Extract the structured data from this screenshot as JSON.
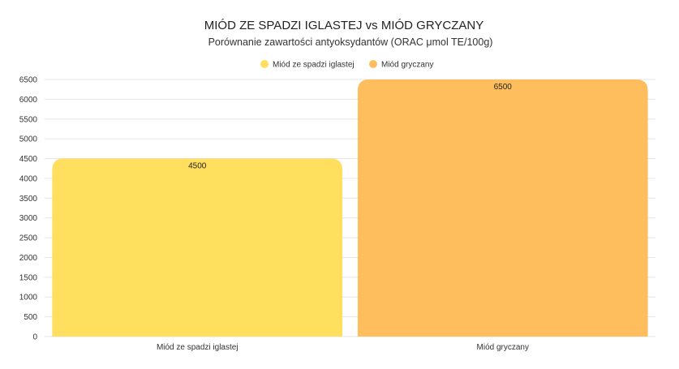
{
  "chart_data": {
    "type": "bar",
    "title": "MIÓD ZE SPADZI IGLASTEJ vs MIÓD GRYCZANY",
    "subtitle": "Porównanie zawartości antyoksydantów (ORAC μmol TE/100g)",
    "categories": [
      "Miód ze spadzi iglastej",
      "Miód gryczany"
    ],
    "series": [
      {
        "name": "Miód ze spadzi iglastej",
        "values": [
          4500,
          null
        ],
        "color": "#FFDF5D"
      },
      {
        "name": "Miód gryczany",
        "values": [
          null,
          6500
        ],
        "color": "#FFBE5D"
      }
    ],
    "data_labels": [
      "4500",
      "6500"
    ],
    "ylim": [
      0,
      6500
    ],
    "yticks": [
      "0",
      "500",
      "1000",
      "1500",
      "2000",
      "2500",
      "3000",
      "3500",
      "4000",
      "4500",
      "5000",
      "5500",
      "6000",
      "6500"
    ],
    "grid": true,
    "legend": "top-center"
  }
}
